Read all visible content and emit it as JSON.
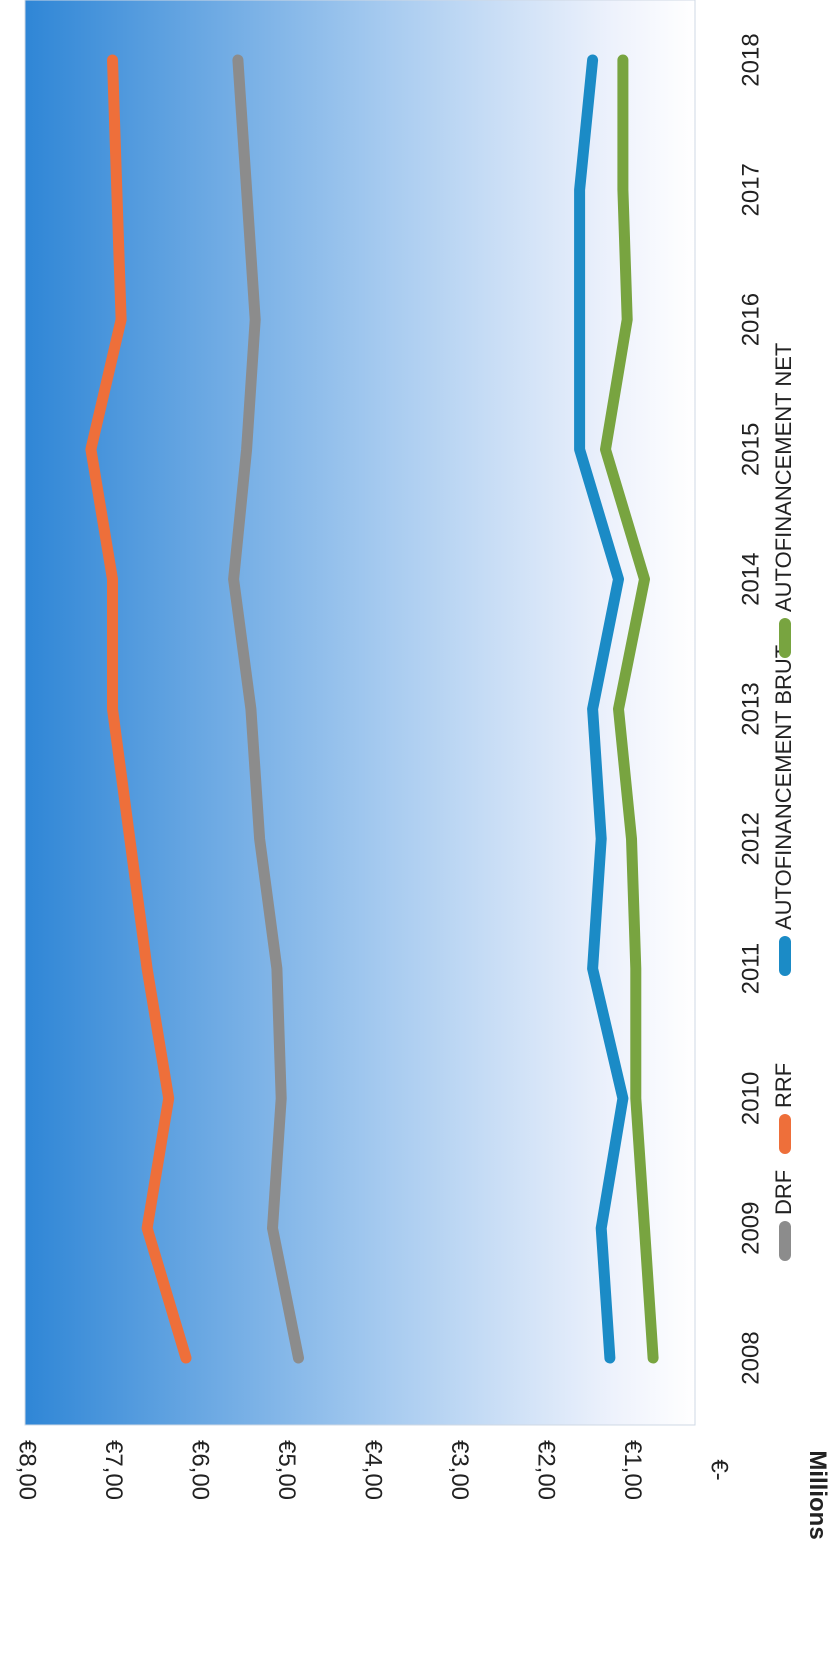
{
  "chart_data": {
    "type": "line",
    "ylabel": "Millions",
    "y_tick_labels": [
      "€-",
      "€1,00",
      "€2,00",
      "€3,00",
      "€4,00",
      "€5,00",
      "€6,00",
      "€7,00",
      "€8,00"
    ],
    "ylim": [
      0,
      8
    ],
    "x": [
      "2008",
      "2009",
      "2010",
      "2011",
      "2012",
      "2013",
      "2014",
      "2015",
      "2016",
      "2017",
      "2018"
    ],
    "series": [
      {
        "name": "DRF",
        "color": "#8c8c8c",
        "values": [
          4.85,
          5.15,
          5.05,
          5.1,
          5.3,
          5.4,
          5.6,
          5.45,
          5.35,
          5.45,
          5.55
        ]
      },
      {
        "name": "RRF",
        "color": "#ee6f3a",
        "values": [
          6.15,
          6.6,
          6.35,
          6.6,
          6.8,
          7.0,
          7.0,
          7.25,
          6.9,
          6.95,
          7.0
        ]
      },
      {
        "name": "AUTOFINANCEMENT BRUT",
        "color": "#1b8bc6",
        "values": [
          1.25,
          1.35,
          1.1,
          1.45,
          1.35,
          1.45,
          1.15,
          1.6,
          1.6,
          1.6,
          1.45
        ]
      },
      {
        "name": "AUTOFINANCEMENT NET",
        "color": "#78a440",
        "values": [
          0.75,
          0.85,
          0.95,
          0.95,
          1.0,
          1.15,
          0.85,
          1.3,
          1.05,
          1.1,
          1.1
        ]
      }
    ],
    "legend_position": "bottom",
    "grid": false,
    "background": "vertical gradient from blue (#2f86d6) at top to white at bottom",
    "orientation_note": "image is rotated 90 degrees clockwise"
  }
}
